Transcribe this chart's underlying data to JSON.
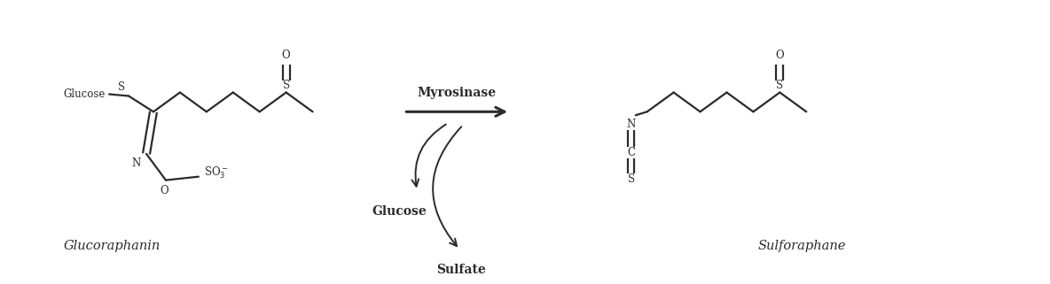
{
  "bg_color": "#ffffff",
  "line_color": "#2a2a2a",
  "text_color": "#2a2a2a",
  "fig_width": 11.84,
  "fig_height": 3.21,
  "dpi": 100,
  "label_glucoraphanin": "Glucoraphanin",
  "label_sulforaphane": "Sulforaphane",
  "label_myrosinase": "Myrosinase",
  "label_glucose_byproduct": "Glucose",
  "label_sulfate": "Sulfate",
  "label_glucose_group": "Glucose",
  "lw": 1.6,
  "lw_arrow": 2.2,
  "font_size_atom": 8.5,
  "font_size_label": 10,
  "font_size_name": 10.5
}
